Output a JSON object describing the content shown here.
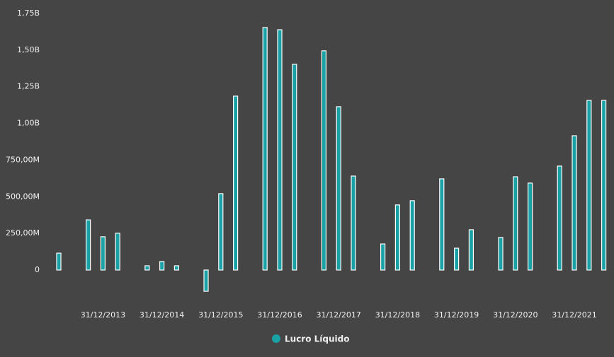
{
  "chart_data": {
    "type": "bar",
    "categories": [
      null,
      null,
      null,
      "31/12/2013",
      null,
      null,
      null,
      "31/12/2014",
      null,
      null,
      null,
      "31/12/2015",
      null,
      null,
      null,
      "31/12/2016",
      null,
      null,
      null,
      "31/12/2017",
      null,
      null,
      null,
      "31/12/2018",
      null,
      null,
      null,
      "31/12/2019",
      null,
      null,
      null,
      "31/12/2020",
      null,
      null,
      null,
      "31/12/2021",
      null,
      null
    ],
    "series": [
      {
        "name": "Lucro Líquido",
        "color": "#1aa1a6",
        "values": [
          115000000,
          null,
          342000000,
          227000000,
          251000000,
          null,
          29000000,
          58000000,
          29000000,
          null,
          -145000000,
          521000000,
          1186000000,
          null,
          1654000000,
          1639000000,
          1403000000,
          null,
          1495000000,
          1114000000,
          641000000,
          null,
          178000000,
          444000000,
          473000000,
          null,
          622000000,
          149000000,
          275000000,
          null,
          222000000,
          636000000,
          593000000,
          null,
          709000000,
          916000000,
          1157000000,
          1157000000
        ]
      }
    ],
    "ylim": [
      -180000000,
      1750000000
    ],
    "yticks": [
      0,
      {
        "value": 250000000,
        "label": "250,00M"
      },
      {
        "value": 500000000,
        "label": "500,00M"
      },
      {
        "value": 750000000,
        "label": "750,00M"
      },
      {
        "value": 1000000000,
        "label": "1,00B"
      },
      {
        "value": 1250000000,
        "label": "1,25B"
      },
      {
        "value": 1500000000,
        "label": "1,50B"
      },
      {
        "value": 1750000000,
        "label": "1,75B"
      }
    ],
    "legend": "bottom"
  }
}
